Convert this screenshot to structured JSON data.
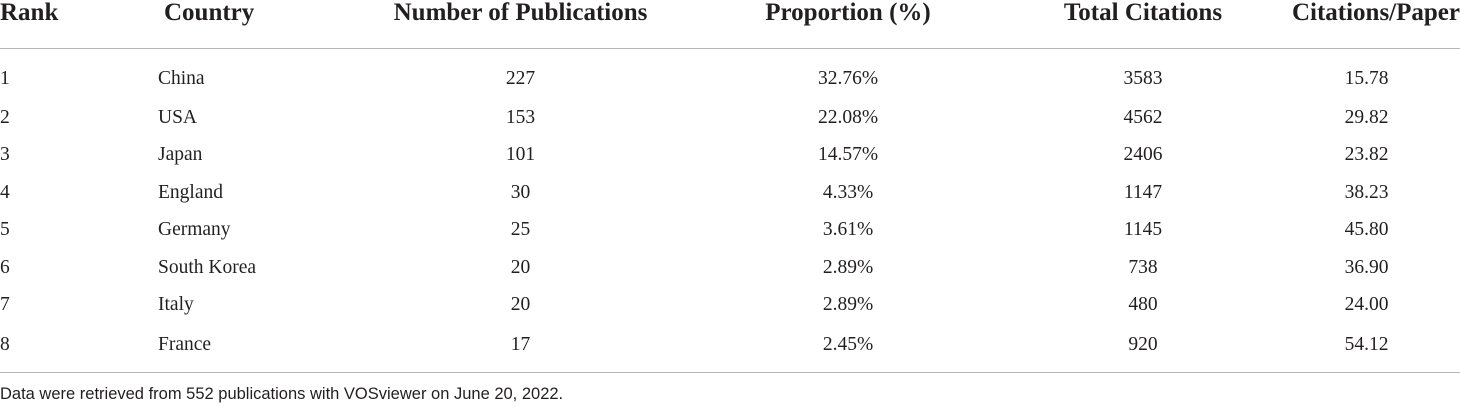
{
  "table": {
    "headers": {
      "rank": "Rank",
      "country": "Country",
      "publications": "Number of Publications",
      "proportion": "Proportion (%)",
      "total_citations": "Total Citations",
      "citations_per_paper": "Citations/Paper"
    },
    "rows": [
      {
        "rank": "1",
        "country": "China",
        "publications": "227",
        "proportion": "32.76%",
        "total_citations": "3583",
        "citations_per_paper": "15.78"
      },
      {
        "rank": "2",
        "country": "USA",
        "publications": "153",
        "proportion": "22.08%",
        "total_citations": "4562",
        "citations_per_paper": "29.82"
      },
      {
        "rank": "3",
        "country": "Japan",
        "publications": "101",
        "proportion": "14.57%",
        "total_citations": "2406",
        "citations_per_paper": "23.82"
      },
      {
        "rank": "4",
        "country": "England",
        "publications": "30",
        "proportion": "4.33%",
        "total_citations": "1147",
        "citations_per_paper": "38.23"
      },
      {
        "rank": "5",
        "country": "Germany",
        "publications": "25",
        "proportion": "3.61%",
        "total_citations": "1145",
        "citations_per_paper": "45.80"
      },
      {
        "rank": "6",
        "country": "South Korea",
        "publications": "20",
        "proportion": "2.89%",
        "total_citations": "738",
        "citations_per_paper": "36.90"
      },
      {
        "rank": "7",
        "country": "Italy",
        "publications": "20",
        "proportion": "2.89%",
        "total_citations": "480",
        "citations_per_paper": "24.00"
      },
      {
        "rank": "8",
        "country": "France",
        "publications": "17",
        "proportion": "2.45%",
        "total_citations": "920",
        "citations_per_paper": "54.12"
      }
    ]
  },
  "footnote": "Data were retrieved from 552 publications with VOSviewer on June 20, 2022."
}
